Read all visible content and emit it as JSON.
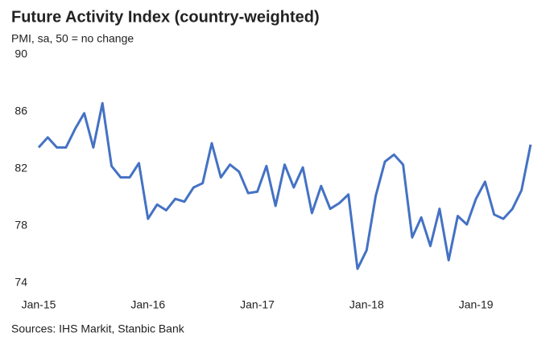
{
  "chart_data": {
    "type": "line",
    "title": "Future Activity Index (country-weighted)",
    "subtitle": "PMI, sa, 50 = no change",
    "source": "Sources: IHS Markit, Stanbic Bank",
    "categories": [
      "Jan-15",
      null,
      null,
      null,
      null,
      null,
      null,
      null,
      null,
      null,
      null,
      null,
      "Jan-16",
      null,
      null,
      null,
      null,
      null,
      null,
      null,
      null,
      null,
      null,
      null,
      "Jan-17",
      null,
      null,
      null,
      null,
      null,
      null,
      null,
      null,
      null,
      null,
      null,
      "Jan-18",
      null,
      null,
      null,
      null,
      null,
      null,
      null,
      null,
      null,
      null,
      null,
      "Jan-19",
      null,
      null,
      null,
      null,
      null,
      null
    ],
    "series": [
      {
        "name": "Future Activity Index",
        "color": "#4472c4",
        "values": [
          83.5,
          84.2,
          83.5,
          83.5,
          84.8,
          85.9,
          83.5,
          86.6,
          82.2,
          81.4,
          81.4,
          82.4,
          78.5,
          79.5,
          79.1,
          79.9,
          79.7,
          80.7,
          81.0,
          83.8,
          81.4,
          82.3,
          81.8,
          80.3,
          80.4,
          82.2,
          79.4,
          82.3,
          80.7,
          82.1,
          78.9,
          80.8,
          79.2,
          79.6,
          80.2,
          75.0,
          76.3,
          80.1,
          82.5,
          83.0,
          82.3,
          77.2,
          78.6,
          76.6,
          79.2,
          75.6,
          78.7,
          78.1,
          79.9,
          81.1,
          78.8,
          78.5,
          79.2,
          80.5,
          83.7
        ]
      }
    ],
    "ylim": [
      74,
      90
    ],
    "yticks": [
      74,
      78,
      82,
      86,
      90
    ],
    "grid": false
  }
}
